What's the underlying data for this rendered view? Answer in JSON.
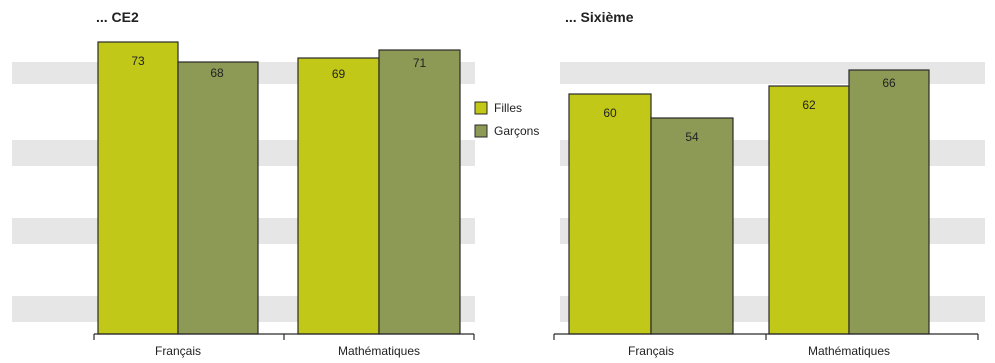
{
  "chart_data": [
    {
      "type": "bar",
      "title": "... CE2",
      "categories": [
        "Français",
        "Mathématiques"
      ],
      "series": [
        {
          "name": "Filles",
          "values": [
            73,
            69
          ]
        },
        {
          "name": "Garçons",
          "values": [
            68,
            71
          ]
        }
      ],
      "ylim": [
        0,
        76
      ],
      "grid": "horizontal bands"
    },
    {
      "type": "bar",
      "title": "... Sixième",
      "categories": [
        "Français",
        "Mathématiques"
      ],
      "series": [
        {
          "name": "Filles",
          "values": [
            60,
            62
          ]
        },
        {
          "name": "Garçons",
          "values": [
            54,
            66
          ]
        }
      ],
      "ylim": [
        0,
        76
      ],
      "grid": "horizontal bands"
    }
  ],
  "legend": {
    "items": [
      "Filles",
      "Garçons"
    ],
    "placement": "center"
  },
  "colors": {
    "filles": "#c2c817",
    "garcons": "#8c9a55",
    "band": "#e6e6e6",
    "stroke": "#2a2a2a",
    "text": "#222222"
  }
}
